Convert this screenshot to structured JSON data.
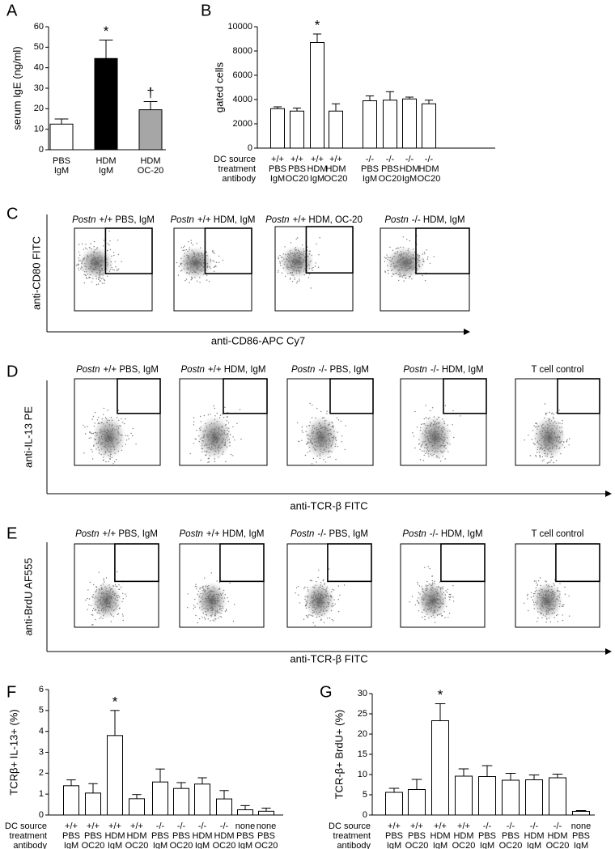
{
  "chart_data": [
    {
      "type": "bar",
      "panel": "A",
      "ylabel": "serum IgE (ng/ml)",
      "categories": [
        [
          "PBS",
          "IgM"
        ],
        [
          "HDM",
          "IgM"
        ],
        [
          "HDM",
          "OC-20"
        ]
      ],
      "values": [
        12.5,
        44.5,
        19.5
      ],
      "errors": [
        2.5,
        9,
        4
      ],
      "colors": [
        "#ffffff",
        "#000000",
        "#a6a6a6"
      ],
      "annotations": [
        null,
        "*",
        "†"
      ],
      "ylim": [
        0,
        60
      ],
      "yticks": [
        0,
        10,
        20,
        30,
        40,
        50,
        60
      ]
    },
    {
      "type": "bar",
      "panel": "B",
      "ylabel": "gated cells",
      "row_labels": [
        "DC source",
        "treatment",
        "antibody"
      ],
      "categories": [
        [
          "+/+",
          "PBS",
          "IgM"
        ],
        [
          "+/+",
          "PBS",
          "OC20"
        ],
        [
          "+/+",
          "HDM",
          "IgM"
        ],
        [
          "+/+",
          "HDM",
          "OC20"
        ],
        [
          "-/-",
          "PBS",
          "IgM"
        ],
        [
          "-/-",
          "PBS",
          "OC20"
        ],
        [
          "-/-",
          "HDM",
          "IgM"
        ],
        [
          "-/-",
          "HDM",
          "OC20"
        ]
      ],
      "values": [
        3250,
        3050,
        8700,
        3050,
        3900,
        3950,
        4050,
        3650
      ],
      "errors": [
        150,
        250,
        700,
        600,
        400,
        700,
        150,
        300
      ],
      "colors": [
        "#ffffff",
        "#ffffff",
        "#ffffff",
        "#ffffff",
        "#ffffff",
        "#ffffff",
        "#ffffff",
        "#ffffff"
      ],
      "annotations": [
        null,
        null,
        "*",
        null,
        null,
        null,
        null,
        null
      ],
      "ylim": [
        0,
        10000
      ],
      "yticks": [
        0,
        2000,
        4000,
        6000,
        8000,
        10000
      ]
    },
    {
      "type": "flow",
      "panel": "C",
      "ylabel": "anti-CD80 FITC",
      "xlabel": "anti-CD86-APC Cy7",
      "plots": [
        {
          "gene": "Postn",
          "condition": "+/+ PBS, IgM"
        },
        {
          "gene": "Postn",
          "condition": "+/+ HDM, IgM"
        },
        {
          "gene": "Postn",
          "condition": "+/+ HDM, OC-20"
        },
        {
          "gene": "Postn",
          "condition": "-/- HDM, IgM"
        }
      ]
    },
    {
      "type": "flow",
      "panel": "D",
      "ylabel": "anti-IL-13 PE",
      "xlabel": "anti-TCR-β FITC",
      "plots": [
        {
          "gene": "Postn",
          "condition": "+/+ PBS, IgM"
        },
        {
          "gene": "Postn",
          "condition": "+/+ HDM, IgM"
        },
        {
          "gene": "Postn",
          "condition": "-/- PBS, IgM"
        },
        {
          "gene": "Postn",
          "condition": "-/- HDM, IgM"
        },
        {
          "condition": "T cell control"
        }
      ]
    },
    {
      "type": "flow",
      "panel": "E",
      "ylabel": "anti-BrdU AF555",
      "xlabel": "anti-TCR-β FITC",
      "plots": [
        {
          "gene": "Postn",
          "condition": "+/+ PBS, IgM"
        },
        {
          "gene": "Postn",
          "condition": "+/+ HDM, IgM"
        },
        {
          "gene": "Postn",
          "condition": "-/- PBS, IgM"
        },
        {
          "gene": "Postn",
          "condition": "-/- HDM, IgM"
        },
        {
          "condition": "T cell control"
        }
      ]
    },
    {
      "type": "bar",
      "panel": "F",
      "ylabel": "TCRβ+ IL-13+ (%)",
      "row_labels": [
        "DC source",
        "treatment",
        "antibody"
      ],
      "categories": [
        [
          "+/+",
          "PBS",
          "IgM"
        ],
        [
          "+/+",
          "PBS",
          "OC20"
        ],
        [
          "+/+",
          "HDM",
          "IgM"
        ],
        [
          "+/+",
          "HDM",
          "OC20"
        ],
        [
          "-/-",
          "PBS",
          "IgM"
        ],
        [
          "-/-",
          "PBS",
          "OC20"
        ],
        [
          "-/-",
          "HDM",
          "IgM"
        ],
        [
          "-/-",
          "HDM",
          "OC20"
        ],
        [
          "none",
          "PBS",
          "IgM"
        ],
        [
          "none",
          "PBS",
          "OC20"
        ]
      ],
      "values": [
        1.4,
        1.05,
        3.8,
        0.78,
        1.58,
        1.27,
        1.48,
        0.77,
        0.25,
        0.18
      ],
      "errors": [
        0.28,
        0.45,
        1.2,
        0.2,
        0.62,
        0.28,
        0.3,
        0.4,
        0.2,
        0.15
      ],
      "colors": [
        "#ffffff",
        "#ffffff",
        "#ffffff",
        "#ffffff",
        "#ffffff",
        "#ffffff",
        "#ffffff",
        "#ffffff",
        "#ffffff",
        "#ffffff"
      ],
      "annotations": [
        null,
        null,
        "*",
        null,
        null,
        null,
        null,
        null,
        null,
        null
      ],
      "ylim": [
        0,
        6
      ],
      "yticks": [
        0,
        1,
        2,
        3,
        4,
        5,
        6
      ]
    },
    {
      "type": "bar",
      "panel": "G",
      "ylabel": "TCR-β+ BrdU+ (%)",
      "row_labels": [
        "DC source",
        "treatment",
        "antibody"
      ],
      "categories": [
        [
          "+/+",
          "PBS",
          "IgM"
        ],
        [
          "+/+",
          "PBS",
          "OC20"
        ],
        [
          "+/+",
          "HDM",
          "IgM"
        ],
        [
          "+/+",
          "HDM",
          "OC20"
        ],
        [
          "-/-",
          "PBS",
          "IgM"
        ],
        [
          "-/-",
          "PBS",
          "OC20"
        ],
        [
          "-/-",
          "HDM",
          "IgM"
        ],
        [
          "-/-",
          "HDM",
          "OC20"
        ],
        [
          "none",
          "PBS",
          "IgM"
        ]
      ],
      "values": [
        5.6,
        6.3,
        23.3,
        9.6,
        9.5,
        8.6,
        8.7,
        9.2,
        0.9
      ],
      "errors": [
        1,
        2.5,
        4.2,
        1.8,
        2.7,
        1.7,
        1.2,
        0.9,
        0.2
      ],
      "colors": [
        "#ffffff",
        "#ffffff",
        "#ffffff",
        "#ffffff",
        "#ffffff",
        "#ffffff",
        "#ffffff",
        "#ffffff",
        "#ffffff"
      ],
      "annotations": [
        null,
        null,
        "*",
        null,
        null,
        null,
        null,
        null,
        null
      ],
      "ylim": [
        0,
        30
      ],
      "yticks": [
        0,
        5,
        10,
        15,
        20,
        25,
        30
      ]
    }
  ]
}
